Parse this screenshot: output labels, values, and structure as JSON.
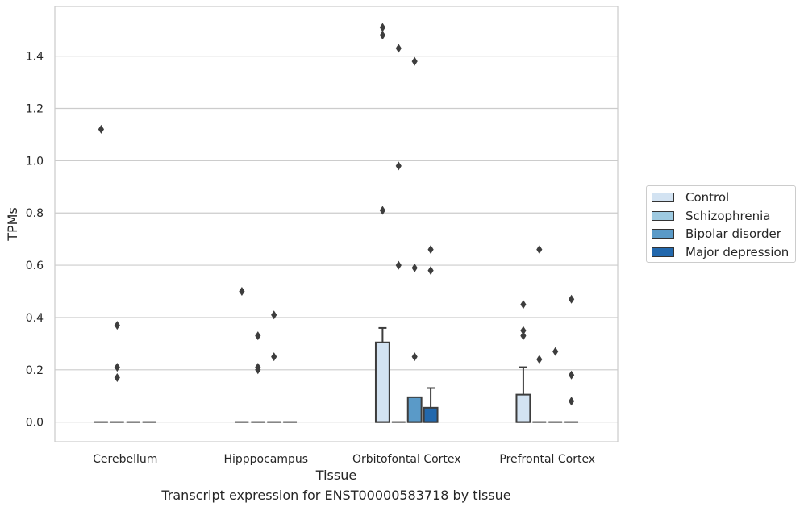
{
  "caption": "Transcript expression for ENST00000583718 by tissue",
  "chart_data": {
    "type": "box",
    "title": "",
    "xlabel": "Tissue",
    "ylabel": "TPMs",
    "ylim": [
      -0.075,
      1.59
    ],
    "yticks": [
      0.0,
      0.2,
      0.4,
      0.6,
      0.8,
      1.0,
      1.2,
      1.4
    ],
    "ytick_labels": [
      "0.0",
      "0.2",
      "0.4",
      "0.6",
      "0.8",
      "1.0",
      "1.2",
      "1.4"
    ],
    "grid": true,
    "legend_position": "right",
    "categories": [
      "Cerebellum",
      "Hipppocampus",
      "Orbitofontal Cortex",
      "Prefrontal Cortex"
    ],
    "series": [
      {
        "name": "Control",
        "color": "#d3e3f2",
        "boxes": [
          {
            "q1": 0,
            "median": 0,
            "q3": 0,
            "whisker_low": 0,
            "whisker_high": 0,
            "outliers": [
              1.12
            ]
          },
          {
            "q1": 0,
            "median": 0,
            "q3": 0,
            "whisker_low": 0,
            "whisker_high": 0,
            "outliers": [
              0.5
            ]
          },
          {
            "q1": 0,
            "median": 0,
            "q3": 0.305,
            "whisker_low": 0,
            "whisker_high": 0.36,
            "outliers": [
              1.51,
              1.48,
              0.81
            ]
          },
          {
            "q1": 0,
            "median": 0,
            "q3": 0.105,
            "whisker_low": 0,
            "whisker_high": 0.21,
            "outliers": [
              0.45,
              0.35,
              0.33
            ]
          }
        ]
      },
      {
        "name": "Schizophrenia",
        "color": "#9ecae1",
        "boxes": [
          {
            "q1": 0,
            "median": 0,
            "q3": 0,
            "whisker_low": 0,
            "whisker_high": 0,
            "outliers": [
              0.37,
              0.21,
              0.17
            ]
          },
          {
            "q1": 0,
            "median": 0,
            "q3": 0,
            "whisker_low": 0,
            "whisker_high": 0,
            "outliers": [
              0.21,
              0.33,
              0.2
            ]
          },
          {
            "q1": 0,
            "median": 0,
            "q3": 0,
            "whisker_low": 0,
            "whisker_high": 0,
            "outliers": [
              1.43,
              0.98,
              0.6
            ]
          },
          {
            "q1": 0,
            "median": 0,
            "q3": 0,
            "whisker_low": 0,
            "whisker_high": 0,
            "outliers": [
              0.66,
              0.24
            ]
          }
        ]
      },
      {
        "name": "Bipolar disorder",
        "color": "#5a9ac8",
        "boxes": [
          {
            "q1": 0,
            "median": 0,
            "q3": 0,
            "whisker_low": 0,
            "whisker_high": 0,
            "outliers": []
          },
          {
            "q1": 0,
            "median": 0,
            "q3": 0,
            "whisker_low": 0,
            "whisker_high": 0,
            "outliers": [
              0.41,
              0.25
            ]
          },
          {
            "q1": 0,
            "median": 0,
            "q3": 0.095,
            "whisker_low": 0,
            "whisker_high": 0.095,
            "outliers": [
              1.38,
              0.59,
              0.25
            ]
          },
          {
            "q1": 0,
            "median": 0,
            "q3": 0,
            "whisker_low": 0,
            "whisker_high": 0,
            "outliers": [
              0.27
            ]
          }
        ]
      },
      {
        "name": "Major depression",
        "color": "#2268ad",
        "boxes": [
          {
            "q1": 0,
            "median": 0,
            "q3": 0,
            "whisker_low": 0,
            "whisker_high": 0,
            "outliers": []
          },
          {
            "q1": 0,
            "median": 0,
            "q3": 0,
            "whisker_low": 0,
            "whisker_high": 0,
            "outliers": []
          },
          {
            "q1": 0,
            "median": 0,
            "q3": 0.055,
            "whisker_low": 0,
            "whisker_high": 0.13,
            "outliers": [
              0.66,
              0.58
            ]
          },
          {
            "q1": 0,
            "median": 0,
            "q3": 0,
            "whisker_low": 0,
            "whisker_high": 0,
            "outliers": [
              0.47,
              0.18,
              0.08
            ]
          }
        ]
      }
    ]
  }
}
